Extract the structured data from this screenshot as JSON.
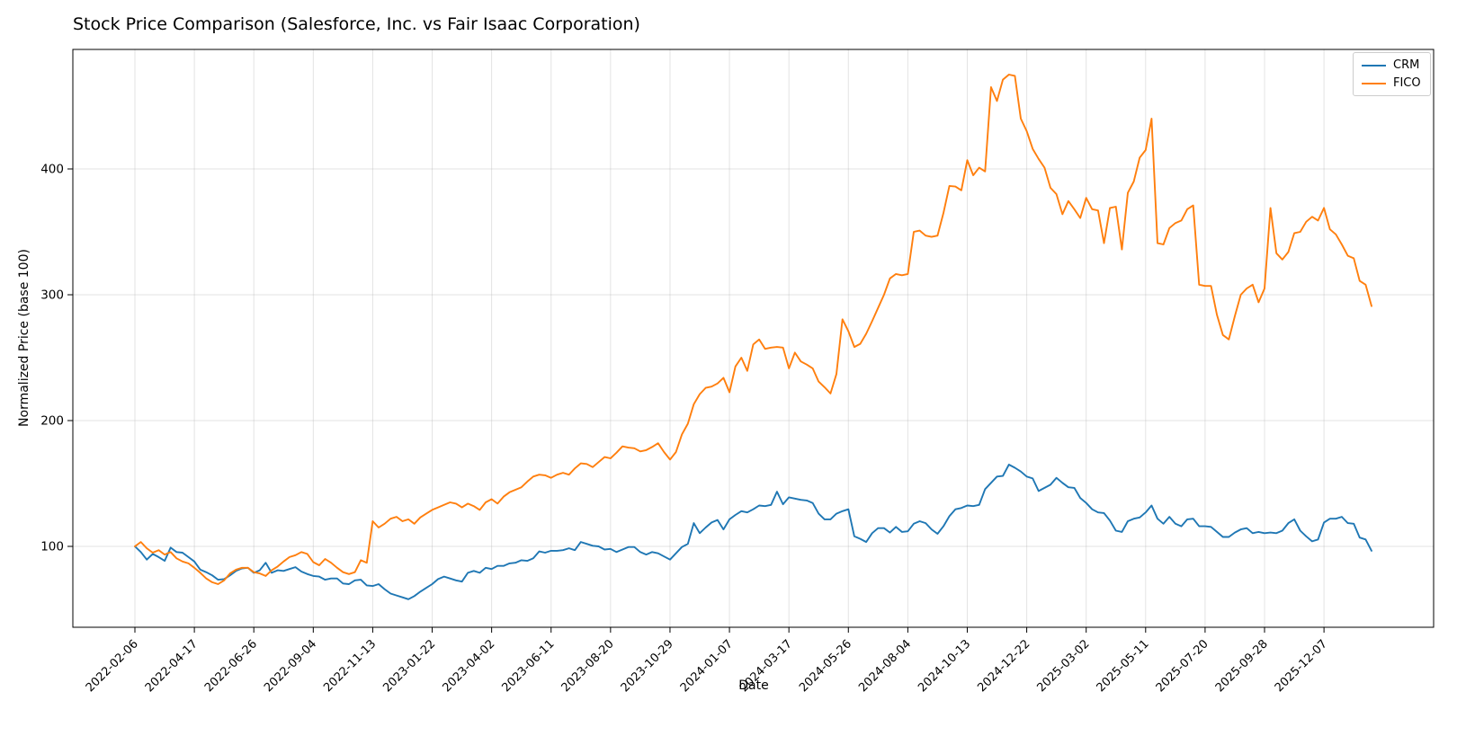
{
  "title": "Stock Price Comparison (Salesforce, Inc. vs Fair Isaac Corporation)",
  "axes": {
    "xlabel": "Date",
    "ylabel": "Normalized Price (base 100)",
    "y_ticks": [
      100,
      200,
      300,
      400
    ],
    "x_ticks": [
      "2022-02-06",
      "2022-04-17",
      "2022-06-26",
      "2022-09-04",
      "2022-11-13",
      "2023-01-22",
      "2023-04-02",
      "2023-06-11",
      "2023-08-20",
      "2023-10-29",
      "2024-01-07",
      "2024-03-17",
      "2024-05-26",
      "2024-08-04",
      "2024-10-13",
      "2024-12-22",
      "2025-03-02",
      "2025-05-11",
      "2025-07-20",
      "2025-09-28",
      "2025-12-07"
    ]
  },
  "legend": {
    "position": "upper right",
    "entries": [
      {
        "label": "CRM",
        "color": "#1f77b4"
      },
      {
        "label": "FICO",
        "color": "#ff7f0e"
      }
    ]
  },
  "chart_data": {
    "type": "line",
    "title": "Stock Price Comparison (Salesforce, Inc. vs Fair Isaac Corporation)",
    "xlabel": "Date",
    "ylabel": "Normalized Price (base 100)",
    "x_start": "2022-02-06",
    "x_frequency": "weekly",
    "x_tick_labels": [
      "2022-02-06",
      "2022-04-17",
      "2022-06-26",
      "2022-09-04",
      "2022-11-13",
      "2023-01-22",
      "2023-04-02",
      "2023-06-11",
      "2023-08-20",
      "2023-10-29",
      "2024-01-07",
      "2024-03-17",
      "2024-05-26",
      "2024-08-04",
      "2024-10-13",
      "2024-12-22",
      "2025-03-02",
      "2025-05-11",
      "2025-07-20",
      "2025-09-28",
      "2025-12-07"
    ],
    "x_tick_every_n_points": 10,
    "y_ticks": [
      100,
      200,
      300,
      400
    ],
    "ylim": [
      36.4,
      495
    ],
    "grid": true,
    "legend_position": "upper right",
    "series": [
      {
        "name": "CRM",
        "color": "#1f77b4",
        "values": [
          100,
          95.5,
          89.5,
          94,
          91.5,
          88.5,
          99,
          95.5,
          95,
          91.5,
          88,
          81.5,
          79.5,
          77,
          73.5,
          74,
          77,
          80.5,
          82.5,
          83,
          79,
          81,
          87,
          79,
          81,
          80.5,
          82,
          83.5,
          80,
          78,
          76.5,
          76,
          73.5,
          74.5,
          74.5,
          70.5,
          70,
          73,
          73.5,
          69,
          68.5,
          70,
          66,
          62.5,
          61,
          59.5,
          58,
          60.5,
          64,
          67,
          70,
          74,
          76,
          74.5,
          73,
          72,
          79,
          80.5,
          79,
          83,
          82,
          84.5,
          84.5,
          86.5,
          87,
          89,
          88.5,
          90.5,
          96,
          95,
          96.5,
          96.5,
          97,
          98.5,
          97,
          103.5,
          102,
          100.5,
          100,
          97.5,
          98,
          95.5,
          97.5,
          99.5,
          99.5,
          95.5,
          93.5,
          95.5,
          94.5,
          92,
          89.5,
          94.5,
          99.5,
          102,
          118.5,
          110.5,
          115,
          119,
          121,
          113.5,
          121.5,
          125,
          128,
          127,
          129.5,
          132.5,
          132,
          133,
          143.5,
          133.5,
          139,
          138,
          137,
          136.5,
          134.5,
          126,
          121.5,
          121.5,
          126,
          128,
          129.5,
          108,
          106,
          103.5,
          110.5,
          114.5,
          114.5,
          111,
          115.5,
          111.5,
          112,
          118,
          120,
          118.5,
          113.5,
          110,
          116,
          124,
          129.5,
          130.5,
          132.5,
          132,
          133,
          145.5,
          150.5,
          155.5,
          156,
          165,
          162.5,
          159.5,
          155.5,
          154,
          144,
          146.5,
          149,
          154.5,
          150.5,
          147,
          146.5,
          138.5,
          134.5,
          129.5,
          127,
          126.5,
          120.5,
          112.5,
          111.5,
          120,
          122,
          123,
          127,
          132.5,
          122,
          118,
          123.5,
          118,
          116,
          121.5,
          122,
          116,
          116,
          115.5,
          111.5,
          107.5,
          107.5,
          111,
          113.5,
          114.5,
          110.5,
          111.5,
          110.5,
          111,
          110.5,
          112.5,
          118.5,
          121.5,
          112.5,
          108,
          104,
          105.5,
          119,
          122,
          122,
          123.5,
          118.5,
          118,
          107,
          105.5,
          96.5
        ]
      },
      {
        "name": "FICO",
        "color": "#ff7f0e",
        "values": [
          100,
          103.5,
          98.5,
          95,
          97,
          93.5,
          95.5,
          90.5,
          88,
          86.5,
          83,
          79,
          74.5,
          71.5,
          70,
          73,
          78.5,
          81.5,
          83,
          83,
          79.5,
          78.5,
          76.5,
          81,
          84,
          88,
          91.5,
          93,
          95.5,
          94,
          87.5,
          85,
          90,
          87,
          83,
          79.5,
          78,
          79.5,
          89,
          87,
          120,
          115,
          118,
          122,
          123.5,
          120,
          121.5,
          118,
          123,
          126,
          129,
          131,
          133,
          135,
          134,
          131,
          134,
          132,
          129,
          135,
          137.5,
          134,
          139.5,
          143,
          145,
          147,
          151.5,
          155.5,
          157,
          156.5,
          154.5,
          157,
          158.5,
          157,
          162,
          166,
          165.5,
          163,
          167,
          171,
          170,
          174.5,
          179.5,
          178.5,
          178,
          175.5,
          176.5,
          179,
          182,
          175,
          169,
          175,
          189,
          197.5,
          213,
          221,
          226,
          227,
          229.5,
          234,
          222.5,
          243,
          250,
          239.5,
          260.5,
          264.5,
          257,
          258,
          258.5,
          258,
          241.5,
          254,
          247,
          244.5,
          241.5,
          231,
          226.5,
          221.5,
          237,
          280.5,
          271,
          258.5,
          261,
          269,
          279,
          289.5,
          300,
          313,
          316.5,
          315.5,
          316.5,
          350,
          351,
          347,
          346,
          347,
          365,
          386.5,
          386,
          383,
          407,
          395,
          401,
          398,
          465,
          454,
          471,
          475,
          474,
          440,
          430,
          416,
          408,
          401,
          385,
          380,
          364,
          374.5,
          368,
          361,
          377,
          368,
          367,
          341,
          369,
          370,
          336,
          381,
          390,
          409,
          415,
          440,
          341,
          340,
          353,
          357,
          359,
          368,
          371,
          308,
          307,
          307,
          284,
          268,
          264.5,
          283,
          300,
          305,
          308,
          294,
          305,
          369,
          333,
          328,
          334,
          349,
          350,
          358,
          362,
          359,
          369,
          352,
          348,
          340,
          331,
          329,
          311,
          308,
          291
        ]
      }
    ]
  }
}
